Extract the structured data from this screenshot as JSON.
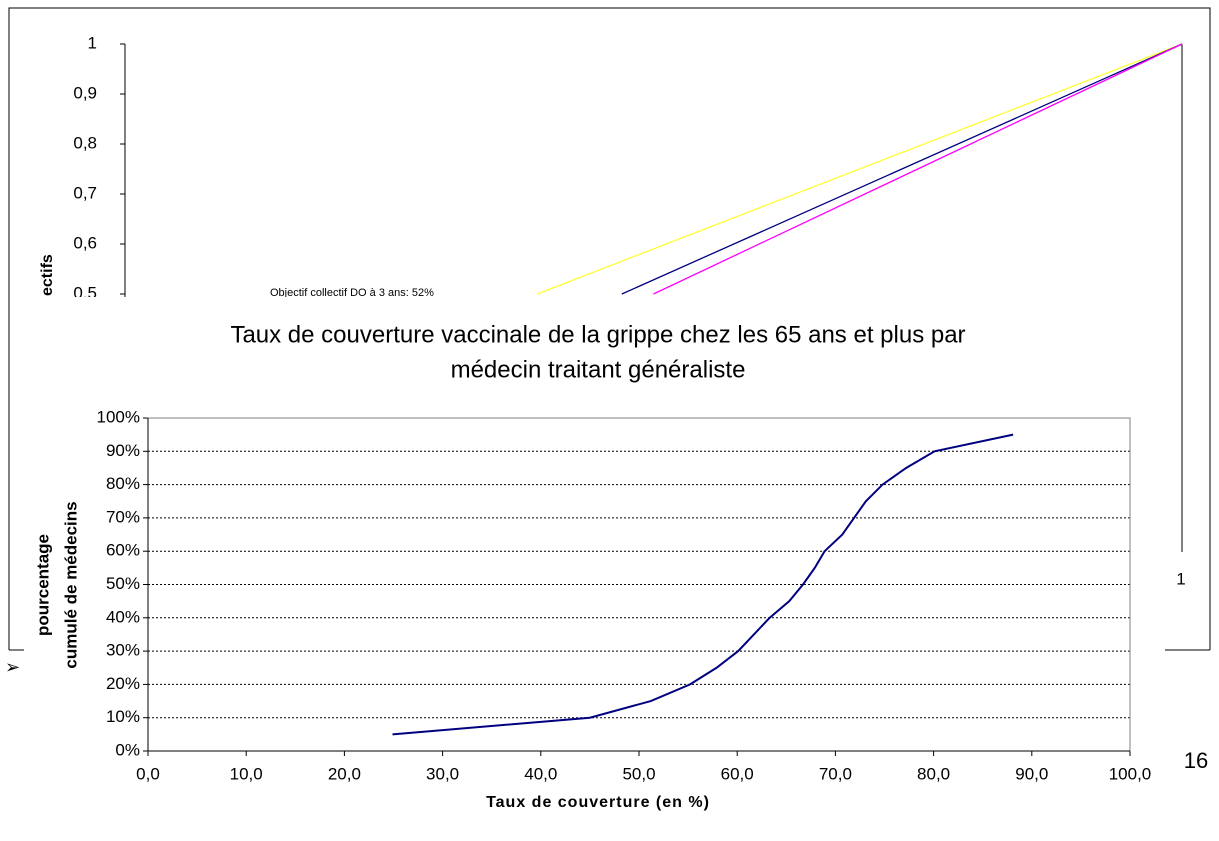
{
  "chart_data": [
    {
      "type": "line",
      "y_label": "ectifs",
      "annotation": "Objectif collectif DO à 3 ans: 52%",
      "xlim": [
        0,
        1
      ],
      "xticks": [
        1
      ],
      "ylim": [
        0,
        1
      ],
      "yticks": [
        {
          "value": 0.5,
          "label": "0,5"
        },
        {
          "value": 0.6,
          "label": "0,6"
        },
        {
          "value": 0.7,
          "label": "0,7"
        },
        {
          "value": 0.8,
          "label": "0,8"
        },
        {
          "value": 0.9,
          "label": "0,9"
        },
        1
      ],
      "series": [
        {
          "color": "#ffff33",
          "x": [
            0.39,
            1
          ],
          "values": [
            0.5,
            1
          ]
        },
        {
          "color": "#000080",
          "x": [
            0.47,
            1
          ],
          "values": [
            0.5,
            1
          ]
        },
        {
          "color": "#ff00ff",
          "x": [
            0.5,
            0.75,
            1
          ],
          "values": [
            0.5,
            0.75,
            1
          ]
        }
      ]
    },
    {
      "type": "line",
      "title": [
        "Taux de couverture vaccinale de la grippe chez les 65 ans et plus par",
        "médecin traitant généraliste"
      ],
      "y_label": [
        "pourcentage",
        "cumulé de médecins"
      ],
      "x_label": "Taux de couverture (en %)",
      "xlim": [
        0,
        100
      ],
      "xticks": [
        {
          "value": 0,
          "label": "0,0"
        },
        {
          "value": 10,
          "label": "10,0"
        },
        {
          "value": 20,
          "label": "20,0"
        },
        {
          "value": 30,
          "label": "30,0"
        },
        {
          "value": 40,
          "label": "40,0"
        },
        {
          "value": 50,
          "label": "50,0"
        },
        {
          "value": 60,
          "label": "60,0"
        },
        {
          "value": 70,
          "label": "70,0"
        },
        {
          "value": 80,
          "label": "80,0"
        },
        {
          "value": 90,
          "label": "90,0"
        },
        {
          "value": 100,
          "label": "100,0"
        }
      ],
      "ylim": [
        0,
        100
      ],
      "yticks": [
        {
          "value": 0,
          "label": "0%"
        },
        {
          "value": 10,
          "label": "10%"
        },
        {
          "value": 20,
          "label": "20%"
        },
        {
          "value": 30,
          "label": "30%"
        },
        {
          "value": 40,
          "label": "40%"
        },
        {
          "value": 50,
          "label": "50%"
        },
        {
          "value": 60,
          "label": "60%"
        },
        {
          "value": 70,
          "label": "70%"
        },
        {
          "value": 80,
          "label": "80%"
        },
        {
          "value": 90,
          "label": "90%"
        },
        {
          "value": 100,
          "label": "100%"
        }
      ],
      "grid": true,
      "series": [
        {
          "color": "#000080",
          "x": [
            24.9,
            45.0,
            51.2,
            55.2,
            57.9,
            60.1,
            63.3,
            65.3,
            66.7,
            67.9,
            68.9,
            70.7,
            73.1,
            74.8,
            77.2,
            80.1,
            88.1
          ],
          "values": [
            5,
            10,
            15,
            20,
            25,
            30,
            40,
            45,
            50,
            55,
            60,
            65,
            75,
            80,
            85,
            90,
            95
          ]
        }
      ]
    }
  ],
  "page_number": "16",
  "bullet": "➢"
}
